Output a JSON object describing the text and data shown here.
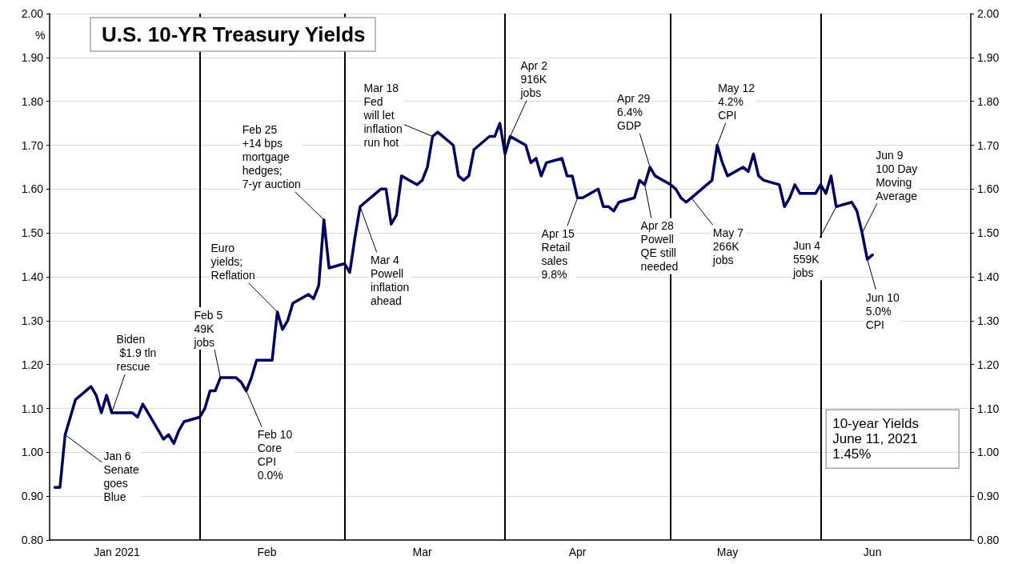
{
  "chart_data": {
    "type": "line",
    "title": "U.S. 10-YR Treasury Yields",
    "ylabel": "%",
    "x": [
      "2021-01-04",
      "2021-01-05",
      "2021-01-06",
      "2021-01-07",
      "2021-01-08",
      "2021-01-11",
      "2021-01-12",
      "2021-01-13",
      "2021-01-14",
      "2021-01-15",
      "2021-01-18",
      "2021-01-19",
      "2021-01-20",
      "2021-01-21",
      "2021-01-22",
      "2021-01-25",
      "2021-01-26",
      "2021-01-27",
      "2021-01-28",
      "2021-01-29",
      "2021-02-01",
      "2021-02-02",
      "2021-02-03",
      "2021-02-04",
      "2021-02-05",
      "2021-02-08",
      "2021-02-09",
      "2021-02-10",
      "2021-02-11",
      "2021-02-12",
      "2021-02-15",
      "2021-02-16",
      "2021-02-17",
      "2021-02-18",
      "2021-02-19",
      "2021-02-22",
      "2021-02-23",
      "2021-02-24",
      "2021-02-25",
      "2021-02-26",
      "2021-03-01",
      "2021-03-02",
      "2021-03-03",
      "2021-03-04",
      "2021-03-05",
      "2021-03-08",
      "2021-03-09",
      "2021-03-10",
      "2021-03-11",
      "2021-03-12",
      "2021-03-15",
      "2021-03-16",
      "2021-03-17",
      "2021-03-18",
      "2021-03-19",
      "2021-03-22",
      "2021-03-23",
      "2021-03-24",
      "2021-03-25",
      "2021-03-26",
      "2021-03-29",
      "2021-03-30",
      "2021-03-31",
      "2021-04-01",
      "2021-04-02",
      "2021-04-05",
      "2021-04-06",
      "2021-04-07",
      "2021-04-08",
      "2021-04-09",
      "2021-04-12",
      "2021-04-13",
      "2021-04-14",
      "2021-04-15",
      "2021-04-16",
      "2021-04-19",
      "2021-04-20",
      "2021-04-21",
      "2021-04-22",
      "2021-04-23",
      "2021-04-26",
      "2021-04-27",
      "2021-04-28",
      "2021-04-29",
      "2021-04-30",
      "2021-05-03",
      "2021-05-04",
      "2021-05-05",
      "2021-05-06",
      "2021-05-07",
      "2021-05-10",
      "2021-05-11",
      "2021-05-12",
      "2021-05-13",
      "2021-05-14",
      "2021-05-17",
      "2021-05-18",
      "2021-05-19",
      "2021-05-20",
      "2021-05-21",
      "2021-05-24",
      "2021-05-25",
      "2021-05-26",
      "2021-05-27",
      "2021-05-28",
      "2021-05-31",
      "2021-06-01",
      "2021-06-02",
      "2021-06-03",
      "2021-06-04",
      "2021-06-07",
      "2021-06-08",
      "2021-06-09",
      "2021-06-10",
      "2021-06-11"
    ],
    "series": [
      {
        "color": "#00005e",
        "values": [
          0.92,
          0.92,
          1.04,
          1.08,
          1.12,
          1.15,
          1.13,
          1.09,
          1.13,
          1.09,
          1.09,
          1.09,
          1.08,
          1.11,
          1.09,
          1.03,
          1.04,
          1.02,
          1.05,
          1.07,
          1.08,
          1.1,
          1.14,
          1.14,
          1.17,
          1.17,
          1.16,
          1.14,
          1.17,
          1.21,
          1.21,
          1.32,
          1.28,
          1.3,
          1.34,
          1.36,
          1.35,
          1.38,
          1.53,
          1.42,
          1.43,
          1.41,
          1.49,
          1.56,
          1.57,
          1.6,
          1.6,
          1.52,
          1.54,
          1.63,
          1.61,
          1.62,
          1.65,
          1.72,
          1.73,
          1.7,
          1.63,
          1.62,
          1.63,
          1.69,
          1.72,
          1.72,
          1.75,
          1.68,
          1.72,
          1.7,
          1.66,
          1.67,
          1.63,
          1.66,
          1.67,
          1.63,
          1.63,
          1.58,
          1.58,
          1.6,
          1.56,
          1.56,
          1.55,
          1.57,
          1.58,
          1.62,
          1.61,
          1.65,
          1.63,
          1.61,
          1.6,
          1.58,
          1.57,
          1.58,
          1.61,
          1.62,
          1.7,
          1.66,
          1.63,
          1.65,
          1.64,
          1.68,
          1.63,
          1.62,
          1.61,
          1.56,
          1.58,
          1.61,
          1.59,
          1.59,
          1.61,
          1.59,
          1.63,
          1.56,
          1.57,
          1.55,
          1.5,
          1.44,
          1.45
        ]
      }
    ],
    "xlim": [
      "2021-01-03",
      "2021-06-30"
    ],
    "xticks": [
      {
        "value": "2021-01-16",
        "label": "Jan 2021"
      },
      {
        "value": "2021-02-14",
        "label": "Feb"
      },
      {
        "value": "2021-03-16",
        "label": "Mar"
      },
      {
        "value": "2021-04-15",
        "label": "Apr"
      },
      {
        "value": "2021-05-14",
        "label": "May"
      },
      {
        "value": "2021-06-11",
        "label": "Jun"
      }
    ],
    "ylim": [
      0.8,
      2.0
    ],
    "yticks": [
      {
        "value": 0.8,
        "label": "0.80"
      },
      {
        "value": 0.9,
        "label": "0.90"
      },
      {
        "value": 1.0,
        "label": "1.00"
      },
      {
        "value": 1.1,
        "label": "1.10"
      },
      {
        "value": 1.2,
        "label": "1.20"
      },
      {
        "value": 1.3,
        "label": "1.30"
      },
      {
        "value": 1.4,
        "label": "1.40"
      },
      {
        "value": 1.5,
        "label": "1.50"
      },
      {
        "value": 1.6,
        "label": "1.60"
      },
      {
        "value": 1.7,
        "label": "1.70"
      },
      {
        "value": 1.8,
        "label": "1.80"
      },
      {
        "value": 1.9,
        "label": "1.90"
      },
      {
        "value": 2.0,
        "label": "2.00"
      }
    ],
    "y2lim": [
      0.8,
      2.0
    ],
    "y2ticks": [
      {
        "value": 0.8,
        "label": "0.80"
      },
      {
        "value": 0.9,
        "label": "0.90"
      },
      {
        "value": 1.0,
        "label": "1.00"
      },
      {
        "value": 1.1,
        "label": "1.10"
      },
      {
        "value": 1.2,
        "label": "1.20"
      },
      {
        "value": 1.3,
        "label": "1.30"
      },
      {
        "value": 1.4,
        "label": "1.40"
      },
      {
        "value": 1.5,
        "label": "1.50"
      },
      {
        "value": 1.6,
        "label": "1.60"
      },
      {
        "value": 1.7,
        "label": "1.70"
      },
      {
        "value": 1.8,
        "label": "1.80"
      },
      {
        "value": 1.9,
        "label": "1.90"
      },
      {
        "value": 2.0,
        "label": "2.00"
      }
    ],
    "ref_lines": [
      {
        "axis": "x",
        "value": "2021-02-01",
        "color": "#000000"
      },
      {
        "axis": "x",
        "value": "2021-03-01",
        "color": "#000000"
      },
      {
        "axis": "x",
        "value": "2021-04-01",
        "color": "#000000"
      },
      {
        "axis": "x",
        "value": "2021-05-03",
        "color": "#000000"
      },
      {
        "axis": "x",
        "value": "2021-06-01",
        "color": "#000000"
      }
    ],
    "annotations": [
      {
        "text": "Jan 6\nSenate\ngoes\nBlue",
        "x": "2021-01-06",
        "y": 1.04
      },
      {
        "text": "Biden\n $1.9 tln\nrescue",
        "x": "2021-01-15",
        "y": 1.09
      },
      {
        "text": "Feb 5\n49K\njobs",
        "x": "2021-02-05",
        "y": 1.17
      },
      {
        "text": "Feb 10\nCore\nCPI\n0.0%",
        "x": "2021-02-10",
        "y": 1.14
      },
      {
        "text": "Euro\nyields;\nReflation",
        "x": "2021-02-16",
        "y": 1.32
      },
      {
        "text": "Feb 25\n+14 bps\nmortgage\nhedges;\n7-yr auction",
        "x": "2021-02-25",
        "y": 1.53
      },
      {
        "text": "Mar 4\nPowell\ninflation\nahead",
        "x": "2021-03-04",
        "y": 1.56
      },
      {
        "text": "Mar 18\nFed\nwill let\ninflation\nrun hot",
        "x": "2021-03-18",
        "y": 1.72
      },
      {
        "text": "Apr 2\n916K\njobs",
        "x": "2021-04-02",
        "y": 1.72
      },
      {
        "text": "Apr 15\nRetail\nsales\n9.8%",
        "x": "2021-04-15",
        "y": 1.58
      },
      {
        "text": "Apr 29\n6.4%\nGDP",
        "x": "2021-04-29",
        "y": 1.65
      },
      {
        "text": "Apr 28\nPowell\nQE still\nneeded",
        "x": "2021-04-28",
        "y": 1.61
      },
      {
        "text": "May 12\n4.2%\nCPI",
        "x": "2021-05-12",
        "y": 1.7
      },
      {
        "text": "May 7\n266K\njobs",
        "x": "2021-05-07",
        "y": 1.58
      },
      {
        "text": "Jun 4\n559K\njobs",
        "x": "2021-06-04",
        "y": 1.56
      },
      {
        "text": "Jun 9\n100 Day\nMoving\nAverage",
        "x": "2021-06-09",
        "y": 1.5
      },
      {
        "text": "Jun 10\n5.0%\nCPI",
        "x": "2021-06-10",
        "y": 1.44
      },
      "10-year Yields\nJune 11, 2021\n1.45%"
    ],
    "grid": "y",
    "marker": "none",
    "line_style": "solid"
  }
}
